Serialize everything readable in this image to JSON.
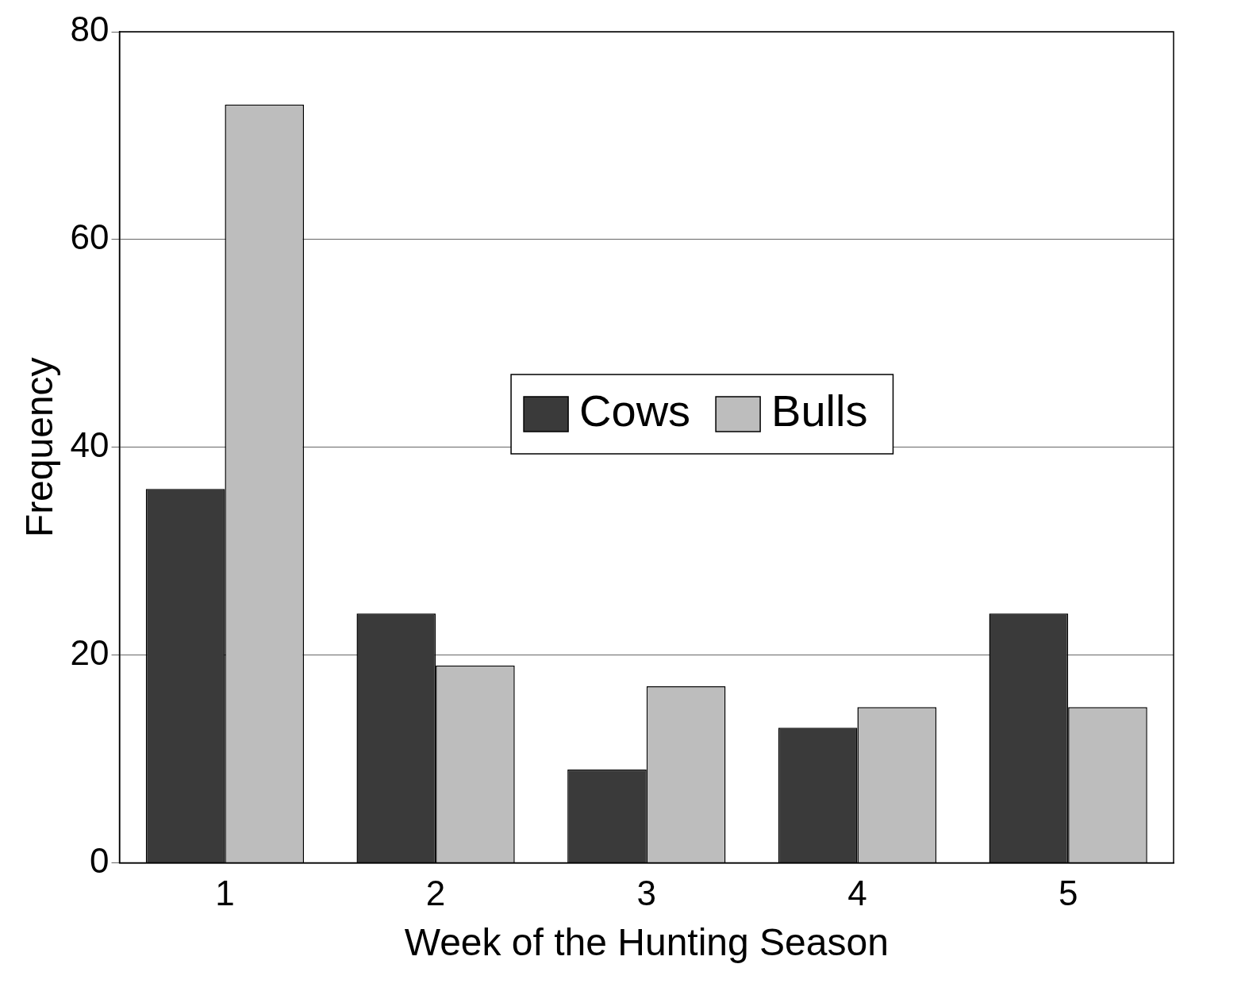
{
  "chart_data": {
    "type": "bar",
    "xlabel": "Week of the Hunting Season",
    "ylabel": "Frequency",
    "categories": [
      "1",
      "2",
      "3",
      "4",
      "5"
    ],
    "series": [
      {
        "name": "Cows",
        "color": "#3a3a3a",
        "values": [
          36,
          24,
          9,
          13,
          24
        ]
      },
      {
        "name": "Bulls",
        "color": "#bdbdbd",
        "values": [
          73,
          19,
          17,
          15,
          15
        ]
      }
    ],
    "ylim": [
      0,
      80
    ],
    "yticks": [
      0,
      20,
      40,
      60,
      80
    ],
    "grid": "y",
    "legend": "center"
  }
}
